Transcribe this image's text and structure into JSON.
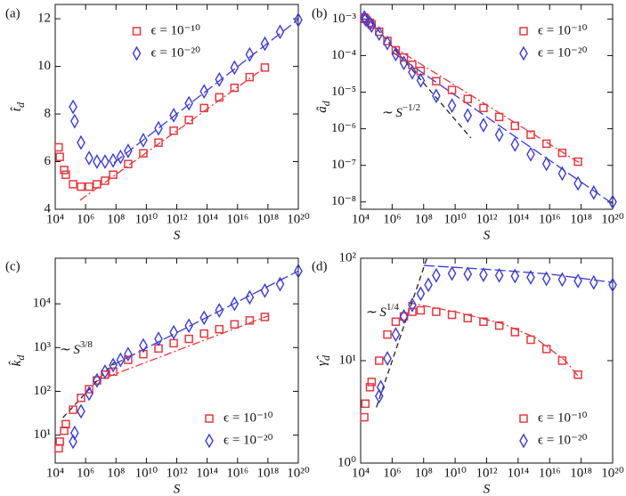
{
  "chart_data": [
    {
      "type": "scatter",
      "panel_label": "(a)",
      "xlabel": "S",
      "ylabel": "t̂",
      "ylabel_sub": "d",
      "xscale": "log",
      "yscale": "linear",
      "xlim": [
        10000.0,
        1e+20
      ],
      "ylim": [
        4,
        12.6
      ],
      "xticks": [
        {
          "value": 10000.0,
          "label": "10⁴"
        },
        {
          "value": 1000000.0,
          "label": "10⁶"
        },
        {
          "value": 100000000.0,
          "label": "10⁸"
        },
        {
          "value": 10000000000.0,
          "label": "10¹⁰"
        },
        {
          "value": 1000000000000.0,
          "label": "10¹²"
        },
        {
          "value": 100000000000000.0,
          "label": "10¹⁴"
        },
        {
          "value": 1e+16,
          "label": "10¹⁶"
        },
        {
          "value": 1e+18,
          "label": "10¹⁸"
        },
        {
          "value": 1e+20,
          "label": "10²⁰"
        }
      ],
      "yticks": [
        4,
        6,
        8,
        10,
        12
      ],
      "legend": "upper center",
      "series": [
        {
          "name": "ϵ = 10⁻¹⁰",
          "color": "#e8383d",
          "marker": "square",
          "x": [
            17000.0,
            20000.0,
            39000.0,
            50000.0,
            150000.0,
            500000.0,
            1700000.0,
            5600000.0,
            19000000.0,
            65000000.0,
            630000000.0,
            6300000000.0,
            63000000000.0,
            630000000000.0,
            6300000000000.0,
            63000000000000.0,
            630000000000000.0,
            6300000000000000.0,
            6.3e+16,
            6.3e+17
          ],
          "values": [
            6.6,
            6.2,
            5.65,
            5.45,
            5.05,
            4.95,
            4.95,
            5.05,
            5.2,
            5.45,
            5.9,
            6.35,
            6.8,
            7.3,
            7.75,
            8.25,
            8.7,
            9.1,
            9.55,
            9.95
          ]
        },
        {
          "name": "ϵ = 10⁻²⁰",
          "color": "#3a3ae0",
          "marker": "diamond",
          "x": [
            150000.0,
            190000.0,
            500000.0,
            1700000.0,
            5600000.0,
            19000000.0,
            65000000.0,
            200000000.0,
            630000000.0,
            6300000000.0,
            63000000000.0,
            630000000000.0,
            6300000000000.0,
            63000000000000.0,
            630000000000000.0,
            6300000000000000.0,
            6.3e+16,
            6.3e+17,
            6.3e+18,
            1e+20
          ],
          "values": [
            8.3,
            7.7,
            6.8,
            6.15,
            6.0,
            6.0,
            6.05,
            6.2,
            6.45,
            6.9,
            7.4,
            7.95,
            8.45,
            8.95,
            9.45,
            9.95,
            10.5,
            10.95,
            11.45,
            11.95
          ]
        }
      ],
      "fits": [
        {
          "color": "#e8383d",
          "dash": "dashdot",
          "x": [
            440000.0,
            6.3e+17
          ],
          "values": [
            4.38,
            9.95
          ]
        },
        {
          "color": "#3a3ae0",
          "dash": "dashed",
          "x": [
            74000000.0,
            1e+20
          ],
          "values": [
            5.95,
            11.97
          ]
        }
      ]
    },
    {
      "type": "scatter",
      "panel_label": "(b)",
      "xlabel": "S",
      "ylabel": "â",
      "ylabel_sub": "d",
      "xscale": "log",
      "yscale": "log",
      "xlim": [
        10000.0,
        1e+20
      ],
      "ylim": [
        6.3e-09,
        0.0025
      ],
      "xticks": [
        {
          "value": 10000.0,
          "label": "10⁴"
        },
        {
          "value": 1000000.0,
          "label": "10⁶"
        },
        {
          "value": 100000000.0,
          "label": "10⁸"
        },
        {
          "value": 10000000000.0,
          "label": "10¹⁰"
        },
        {
          "value": 1000000000000.0,
          "label": "10¹²"
        },
        {
          "value": 100000000000000.0,
          "label": "10¹⁴"
        },
        {
          "value": 1e+16,
          "label": "10¹⁶"
        },
        {
          "value": 1e+18,
          "label": "10¹⁸"
        },
        {
          "value": 1e+20,
          "label": "10²⁰"
        }
      ],
      "yticks": [
        {
          "value": 1e-08,
          "label": "10⁻⁸"
        },
        {
          "value": 1e-07,
          "label": "10⁻⁷"
        },
        {
          "value": 1e-06,
          "label": "10⁻⁶"
        },
        {
          "value": 1e-05,
          "label": "10⁻⁵"
        },
        {
          "value": 0.0001,
          "label": "10⁻⁴"
        },
        {
          "value": 0.001,
          "label": "10⁻³"
        }
      ],
      "legend": "upper right",
      "series": [
        {
          "name": "ϵ = 10⁻¹⁰",
          "color": "#e8383d",
          "marker": "square",
          "x": [
            17000.0,
            20000.0,
            39000.0,
            50000.0,
            150000.0,
            500000.0,
            1700000.0,
            5600000.0,
            19000000.0,
            65000000.0,
            630000000.0,
            6300000000.0,
            63000000000.0,
            630000000000.0,
            6300000000000.0,
            63000000000000.0,
            630000000000000.0,
            6300000000000000.0,
            6.3e+16,
            6.3e+17
          ],
          "values": [
            0.0011,
            0.001,
            0.00079,
            0.00071,
            0.00045,
            0.00025,
            0.00014,
            8.9e-05,
            5.6e-05,
            3.8e-05,
            2e-05,
            1.15e-05,
            6.5e-06,
            3.7e-06,
            2.1e-06,
            1.2e-06,
            6.9e-07,
            3.9e-07,
            2.2e-07,
            1.26e-07
          ]
        },
        {
          "name": "ϵ = 10⁻²⁰",
          "color": "#3a3ae0",
          "marker": "diamond",
          "x": [
            17000.0,
            20000.0,
            39000.0,
            50000.0,
            150000.0,
            500000.0,
            1700000.0,
            5600000.0,
            19000000.0,
            65000000.0,
            630000000.0,
            6300000000.0,
            63000000000.0,
            630000000000.0,
            6300000000000.0,
            63000000000000.0,
            630000000000000.0,
            6300000000000000.0,
            6.3e+16,
            6.3e+17,
            6.3e+18,
            1e+20
          ],
          "values": [
            0.0011,
            0.001,
            0.00076,
            0.00066,
            0.0004,
            0.00022,
            0.00011,
            6.3e-05,
            3.5e-05,
            2.1e-05,
            7.9e-06,
            4.3e-06,
            2.3e-06,
            1.26e-06,
            6.9e-07,
            3.7e-07,
            2e-07,
            1.1e-07,
            6e-08,
            3.2e-08,
            1.8e-08,
            1e-08
          ]
        }
      ],
      "fits": [
        {
          "color": "#e8383d",
          "dash": "dashdot",
          "x": [
            1000000.0,
            1e+18
          ],
          "values": [
            0.00018,
            1.1e-07
          ]
        },
        {
          "color": "#3a3ae0",
          "dash": "dashed",
          "x": [
            1000000.0,
            1e+20
          ],
          "values": [
            0.000126,
            8.9e-09
          ]
        }
      ],
      "reference": {
        "color": "#222222",
        "x": [
          20000.0,
          100000000000.0
        ],
        "values": [
          0.00126,
          5.6e-07
        ],
        "text": "∼ S",
        "sup": "−1/2"
      }
    },
    {
      "type": "scatter",
      "panel_label": "(c)",
      "xlabel": "S",
      "ylabel": "k̂",
      "ylabel_sub": "d",
      "xscale": "log",
      "yscale": "log",
      "xlim": [
        10000.0,
        1e+20
      ],
      "ylim": [
        2.3,
        110000.0
      ],
      "xticks": [
        {
          "value": 10000.0,
          "label": "10⁴"
        },
        {
          "value": 1000000.0,
          "label": "10⁶"
        },
        {
          "value": 100000000.0,
          "label": "10⁸"
        },
        {
          "value": 10000000000.0,
          "label": "10¹⁰"
        },
        {
          "value": 1000000000000.0,
          "label": "10¹²"
        },
        {
          "value": 100000000000000.0,
          "label": "10¹⁴"
        },
        {
          "value": 1e+16,
          "label": "10¹⁶"
        },
        {
          "value": 1e+18,
          "label": "10¹⁸"
        },
        {
          "value": 1e+20,
          "label": "10²⁰"
        }
      ],
      "yticks": [
        {
          "value": 10,
          "label": "10¹"
        },
        {
          "value": 100,
          "label": "10²"
        },
        {
          "value": 1000,
          "label": "10³"
        },
        {
          "value": 10000,
          "label": "10⁴"
        }
      ],
      "legend": "lower right",
      "series": [
        {
          "name": "ϵ = 10⁻¹⁰",
          "color": "#e8383d",
          "marker": "square",
          "x": [
            17000.0,
            20000.0,
            39000.0,
            50000.0,
            150000.0,
            500000.0,
            1700000.0,
            5600000.0,
            19000000.0,
            65000000.0,
            630000000.0,
            6300000000.0,
            63000000000.0,
            630000000000.0,
            6300000000000.0,
            63000000000000.0,
            630000000000000.0,
            6300000000000000.0,
            6.3e+16,
            6.3e+17
          ],
          "values": [
            5.0,
            7.1,
            12.6,
            17.8,
            38,
            71,
            112,
            178,
            240,
            282,
            525,
            708,
            955,
            1260,
            1580,
            2090,
            2630,
            3390,
            4170,
            5010
          ]
        },
        {
          "name": "ϵ = 10⁻²⁰",
          "color": "#3a3ae0",
          "marker": "diamond",
          "x": [
            150000.0,
            190000.0,
            500000.0,
            1700000.0,
            5600000.0,
            19000000.0,
            65000000.0,
            200000000.0,
            630000000.0,
            6300000000.0,
            63000000000.0,
            630000000000.0,
            6300000000000.0,
            63000000000000.0,
            630000000000000.0,
            6300000000000000.0,
            6.3e+16,
            6.3e+17,
            6.3e+18,
            1e+20
          ],
          "values": [
            7.1,
            11.2,
            35,
            89,
            178,
            282,
            398,
            525,
            708,
            1120,
            1580,
            2240,
            3160,
            4790,
            7080,
            10000,
            14100,
            20000,
            28200,
            56200
          ]
        }
      ],
      "fits": [
        {
          "color": "#e8383d",
          "dash": "dashdot",
          "x": [
            3200000.0,
            1e+18
          ],
          "values": [
            160,
            5250
          ]
        },
        {
          "color": "#3a3ae0",
          "dash": "dashed",
          "x": [
            63000000.0,
            1e+20
          ],
          "values": [
            400,
            56200
          ]
        }
      ],
      "reference": {
        "color": "#222222",
        "x": [
          32000.0,
          100000000.0
        ],
        "values": [
          25,
          513
        ],
        "text": "∼ S",
        "sup": "3/8"
      }
    },
    {
      "type": "scatter",
      "panel_label": "(d)",
      "xlabel": "S",
      "ylabel": "γ̂",
      "ylabel_sub": "d",
      "xscale": "log",
      "yscale": "log",
      "xlim": [
        10000.0,
        1e+20
      ],
      "ylim": [
        1,
        100
      ],
      "xticks": [
        {
          "value": 10000.0,
          "label": "10⁴"
        },
        {
          "value": 1000000.0,
          "label": "10⁶"
        },
        {
          "value": 100000000.0,
          "label": "10⁸"
        },
        {
          "value": 10000000000.0,
          "label": "10¹⁰"
        },
        {
          "value": 1000000000000.0,
          "label": "10¹²"
        },
        {
          "value": 100000000000000.0,
          "label": "10¹⁴"
        },
        {
          "value": 1e+16,
          "label": "10¹⁶"
        },
        {
          "value": 1e+18,
          "label": "10¹⁸"
        },
        {
          "value": 1e+20,
          "label": "10²⁰"
        }
      ],
      "yticks": [
        {
          "value": 1,
          "label": "10⁰"
        },
        {
          "value": 10,
          "label": "10¹"
        },
        {
          "value": 100,
          "label": "10²"
        }
      ],
      "legend": "lower right",
      "series": [
        {
          "name": "ϵ = 10⁻¹⁰",
          "color": "#e8383d",
          "marker": "square",
          "x": [
            17000.0,
            20000.0,
            39000.0,
            50000.0,
            150000.0,
            500000.0,
            1700000.0,
            5600000.0,
            19000000.0,
            65000000.0,
            630000000.0,
            6300000000.0,
            63000000000.0,
            630000000000.0,
            6300000000000.0,
            63000000000000.0,
            630000000000000.0,
            6300000000000000.0,
            6.3e+16,
            6.3e+17
          ],
          "values": [
            2.8,
            3.8,
            5.5,
            6.2,
            10,
            18,
            24,
            27,
            30,
            31,
            30,
            28,
            26,
            24,
            22,
            19,
            16,
            13,
            10,
            7.3
          ]
        },
        {
          "name": "ϵ = 10⁻²⁰",
          "color": "#3a3ae0",
          "marker": "diamond",
          "x": [
            150000.0,
            190000.0,
            500000.0,
            1700000.0,
            5600000.0,
            19000000.0,
            65000000.0,
            200000000.0,
            630000000.0,
            6300000000.0,
            63000000000.0,
            630000000000.0,
            6300000000000.0,
            63000000000000.0,
            630000000000000.0,
            6300000000000000.0,
            6.3e+16,
            6.3e+17,
            6.3e+18,
            1e+20
          ],
          "values": [
            4.5,
            5.5,
            10.5,
            18,
            27,
            35,
            45,
            55,
            68,
            71,
            70,
            69,
            68,
            67,
            65,
            63,
            62,
            60,
            58,
            55
          ]
        }
      ],
      "fits": [
        {
          "color": "#e8383d",
          "dash": "dashdot",
          "x": [
            10000000.0,
            10000000000.0,
            10000000000000.0,
            1000000000000000.0,
            1e+17,
            1e+18
          ],
          "values": [
            37,
            30,
            23,
            17,
            10,
            6.5
          ]
        },
        {
          "color": "#3a3ae0",
          "dash": "dashed",
          "x": [
            100000000.0,
            1000000000000.0,
            1e+16,
            1e+20
          ],
          "values": [
            85,
            78,
            70,
            58
          ]
        }
      ],
      "reference": {
        "color": "#222222",
        "x": [
          100000.0,
          160000000.0
        ],
        "values": [
          3.5,
          100
        ],
        "text": "∼ S",
        "sup": "1/4"
      }
    }
  ]
}
